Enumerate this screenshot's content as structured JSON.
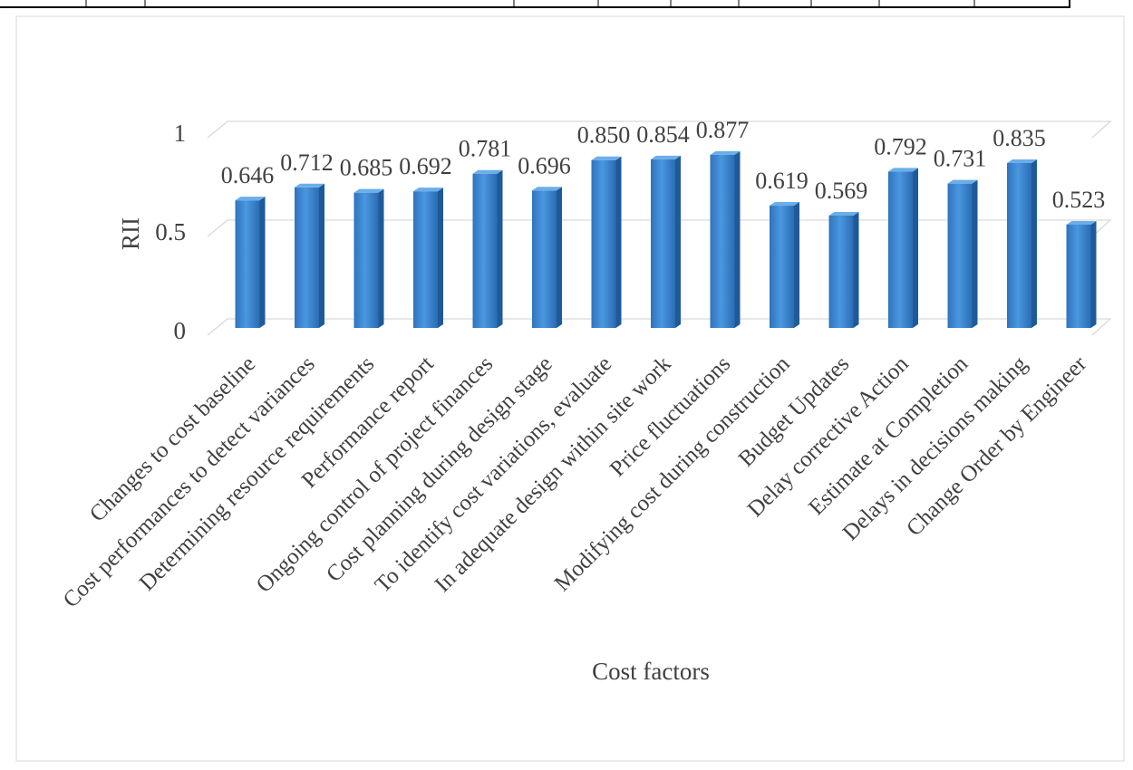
{
  "chart_data": {
    "type": "bar",
    "title": "",
    "xlabel": "Cost factors",
    "ylabel": "RII",
    "ylim": [
      0,
      1
    ],
    "yticks": [
      "0",
      "0.5",
      "1"
    ],
    "grid": true,
    "legend": "none",
    "style": "3d-columns",
    "bar_color": "#3b86cf",
    "categories": [
      "Changes to cost baseline",
      "Cost performances to detect variances",
      "Determining resource requirements",
      "Performance report",
      "Ongoing control of project finances",
      "Cost planning during design stage",
      "To identify cost variations, evaluate",
      "In adequate design within site work",
      "Price fluctuations",
      "Modifying cost during construction",
      "Budget Updates",
      "Delay corrective Action",
      "Estimate at Completion",
      "Delays in decisions making",
      "Change Order by Engineer"
    ],
    "values": [
      0.646,
      0.712,
      0.685,
      0.692,
      0.781,
      0.696,
      0.85,
      0.854,
      0.877,
      0.619,
      0.569,
      0.792,
      0.731,
      0.835,
      0.523
    ],
    "data_labels": [
      "0.646",
      "0.712",
      "0.685",
      "0.692",
      "0.781",
      "0.696",
      "0.850",
      "0.854",
      "0.877",
      "0.619",
      "0.569",
      "0.792",
      "0.731",
      "0.835",
      "0.523"
    ]
  }
}
